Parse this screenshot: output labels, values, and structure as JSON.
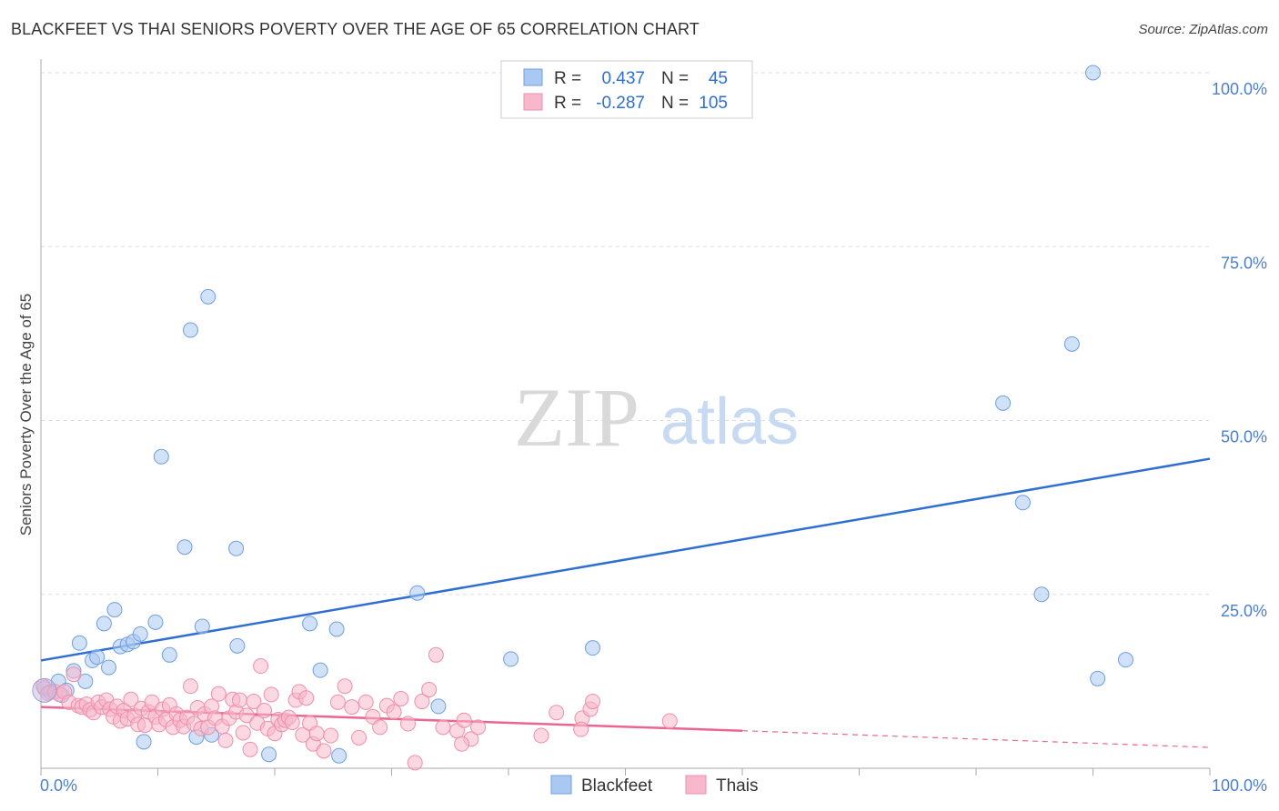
{
  "header": {
    "title": "BLACKFEET VS THAI SENIORS POVERTY OVER THE AGE OF 65 CORRELATION CHART",
    "source": "Source: ZipAtlas.com"
  },
  "watermark": {
    "zip": "ZIP",
    "atlas": "atlas"
  },
  "legend": {
    "rows": [
      {
        "r_label": "R =",
        "r_value": "0.437",
        "n_label": "N =",
        "n_value": "45",
        "color": "#a9c8f2",
        "stroke": "#6f9fe0"
      },
      {
        "r_label": "R =",
        "r_value": "-0.287",
        "n_label": "N =",
        "n_value": "105",
        "color": "#f7b8cb",
        "stroke": "#ee8fac"
      }
    ]
  },
  "bottom_legend": [
    {
      "label": "Blackfeet",
      "color": "#a9c8f2",
      "stroke": "#6f9fe0"
    },
    {
      "label": "Thais",
      "color": "#f7b8cb",
      "stroke": "#ee8fac"
    }
  ],
  "chart_data": {
    "type": "scatter",
    "title": "BLACKFEET VS THAI SENIORS POVERTY OVER THE AGE OF 65 CORRELATION CHART",
    "xlabel": "",
    "ylabel": "Seniors Poverty Over the Age of 65",
    "xlim": [
      0,
      100
    ],
    "ylim": [
      0,
      100
    ],
    "x_tick_labels": [
      "0.0%",
      "100.0%"
    ],
    "y_ticks": [
      25,
      50,
      75,
      100
    ],
    "y_tick_labels": [
      "25.0%",
      "50.0%",
      "75.0%",
      "100.0%"
    ],
    "grid": true,
    "legend_position": "top-center",
    "series": [
      {
        "name": "Blackfeet",
        "color": "#6f9fe0",
        "fill": "#a9c8f2",
        "trend": {
          "x0": 0,
          "y0": 15.5,
          "x1": 100,
          "y1": 44.5,
          "color": "#2e6fd1"
        },
        "points": [
          [
            0.3,
            11.5
          ],
          [
            0.8,
            11.0
          ],
          [
            1.5,
            12.5
          ],
          [
            1.8,
            10.5
          ],
          [
            2.2,
            11.2
          ],
          [
            2.8,
            14.0
          ],
          [
            3.3,
            18.0
          ],
          [
            3.8,
            12.5
          ],
          [
            4.4,
            15.5
          ],
          [
            4.8,
            16.0
          ],
          [
            5.4,
            20.8
          ],
          [
            5.8,
            14.5
          ],
          [
            6.3,
            22.8
          ],
          [
            6.8,
            17.5
          ],
          [
            7.4,
            17.8
          ],
          [
            7.9,
            18.2
          ],
          [
            8.5,
            19.3
          ],
          [
            8.8,
            3.8
          ],
          [
            9.8,
            21.0
          ],
          [
            10.3,
            44.8
          ],
          [
            11.0,
            16.3
          ],
          [
            12.3,
            31.8
          ],
          [
            12.8,
            63.0
          ],
          [
            13.3,
            4.5
          ],
          [
            13.8,
            20.4
          ],
          [
            14.3,
            67.8
          ],
          [
            14.6,
            4.8
          ],
          [
            16.8,
            17.6
          ],
          [
            16.7,
            31.6
          ],
          [
            19.5,
            2.0
          ],
          [
            23.0,
            20.8
          ],
          [
            23.9,
            14.1
          ],
          [
            25.3,
            20.0
          ],
          [
            25.5,
            1.8
          ],
          [
            32.2,
            25.2
          ],
          [
            34.0,
            8.9
          ],
          [
            40.2,
            15.7
          ],
          [
            47.2,
            17.3
          ],
          [
            82.3,
            52.5
          ],
          [
            84.0,
            38.2
          ],
          [
            85.6,
            25.0
          ],
          [
            88.2,
            61.0
          ],
          [
            90.0,
            100.0
          ],
          [
            90.4,
            12.9
          ],
          [
            92.8,
            15.6
          ]
        ]
      },
      {
        "name": "Thais",
        "color": "#ee8fac",
        "fill": "#f7b8cb",
        "trend": {
          "x0": 0,
          "y0": 8.8,
          "x1": 60,
          "y1": 5.4,
          "dash_x1": 100,
          "dash_y1": 3.0,
          "color": "#e8668f"
        },
        "points": [
          [
            0.2,
            11.8
          ],
          [
            0.6,
            10.8
          ],
          [
            1.2,
            11.0
          ],
          [
            1.6,
            10.6
          ],
          [
            2.0,
            11.0
          ],
          [
            2.4,
            9.5
          ],
          [
            2.8,
            13.5
          ],
          [
            3.2,
            9.0
          ],
          [
            3.5,
            8.8
          ],
          [
            3.9,
            9.2
          ],
          [
            4.2,
            8.4
          ],
          [
            4.5,
            8.0
          ],
          [
            4.9,
            9.5
          ],
          [
            5.2,
            8.8
          ],
          [
            5.6,
            9.8
          ],
          [
            5.9,
            8.5
          ],
          [
            6.2,
            7.4
          ],
          [
            6.5,
            8.9
          ],
          [
            6.8,
            6.8
          ],
          [
            7.1,
            8.3
          ],
          [
            7.4,
            7.1
          ],
          [
            7.7,
            9.9
          ],
          [
            8.0,
            7.6
          ],
          [
            8.3,
            6.3
          ],
          [
            8.6,
            8.6
          ],
          [
            8.9,
            6.2
          ],
          [
            9.2,
            8.1
          ],
          [
            9.5,
            9.5
          ],
          [
            9.8,
            7.4
          ],
          [
            10.1,
            6.3
          ],
          [
            10.4,
            8.5
          ],
          [
            10.7,
            7.0
          ],
          [
            11.0,
            9.1
          ],
          [
            11.3,
            5.9
          ],
          [
            11.6,
            7.8
          ],
          [
            11.9,
            6.9
          ],
          [
            12.2,
            6.0
          ],
          [
            12.5,
            7.3
          ],
          [
            12.8,
            11.8
          ],
          [
            13.1,
            6.4
          ],
          [
            13.4,
            8.7
          ],
          [
            13.7,
            5.7
          ],
          [
            14.0,
            7.8
          ],
          [
            14.3,
            5.9
          ],
          [
            14.6,
            8.9
          ],
          [
            14.9,
            7.2
          ],
          [
            15.2,
            10.7
          ],
          [
            15.5,
            6.0
          ],
          [
            15.8,
            4.0
          ],
          [
            16.1,
            7.2
          ],
          [
            16.4,
            9.9
          ],
          [
            16.7,
            8.1
          ],
          [
            17.0,
            9.8
          ],
          [
            17.3,
            5.1
          ],
          [
            17.6,
            7.6
          ],
          [
            17.9,
            2.7
          ],
          [
            18.2,
            9.6
          ],
          [
            18.5,
            6.5
          ],
          [
            18.8,
            14.7
          ],
          [
            19.1,
            8.3
          ],
          [
            19.4,
            5.7
          ],
          [
            19.7,
            10.6
          ],
          [
            20.0,
            5.0
          ],
          [
            20.3,
            7.0
          ],
          [
            20.6,
            6.3
          ],
          [
            20.9,
            6.9
          ],
          [
            21.2,
            7.3
          ],
          [
            21.5,
            6.6
          ],
          [
            21.8,
            9.8
          ],
          [
            22.1,
            11.0
          ],
          [
            22.4,
            4.8
          ],
          [
            22.7,
            10.1
          ],
          [
            23.0,
            6.5
          ],
          [
            23.3,
            3.5
          ],
          [
            23.6,
            5.0
          ],
          [
            24.2,
            2.5
          ],
          [
            24.8,
            4.7
          ],
          [
            25.4,
            9.5
          ],
          [
            26.0,
            11.8
          ],
          [
            26.6,
            8.8
          ],
          [
            27.2,
            4.4
          ],
          [
            27.8,
            9.5
          ],
          [
            28.4,
            7.4
          ],
          [
            29.0,
            5.9
          ],
          [
            29.6,
            9.0
          ],
          [
            30.2,
            8.1
          ],
          [
            30.8,
            10.0
          ],
          [
            31.4,
            6.4
          ],
          [
            32.0,
            0.8
          ],
          [
            32.6,
            9.6
          ],
          [
            33.2,
            11.3
          ],
          [
            33.8,
            16.3
          ],
          [
            34.4,
            5.9
          ],
          [
            35.6,
            5.4
          ],
          [
            36.2,
            6.9
          ],
          [
            36.8,
            4.2
          ],
          [
            37.4,
            5.9
          ],
          [
            42.8,
            4.7
          ],
          [
            44.1,
            8.0
          ],
          [
            46.3,
            7.2
          ],
          [
            47.0,
            8.5
          ],
          [
            47.2,
            9.6
          ],
          [
            46.2,
            5.6
          ],
          [
            53.8,
            6.8
          ],
          [
            36.0,
            3.5
          ]
        ]
      }
    ]
  }
}
